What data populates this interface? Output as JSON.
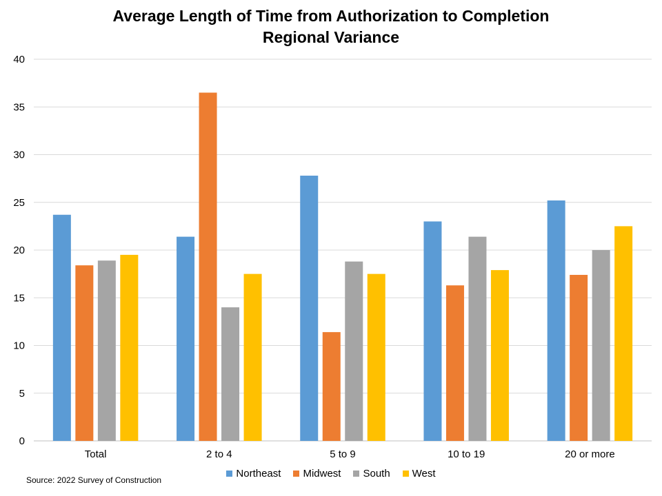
{
  "chart_data": {
    "type": "bar",
    "title": "Average Length of Time from Authorization to Completion",
    "subtitle": "Regional Variance",
    "categories": [
      "Total",
      "2 to 4",
      "5 to 9",
      "10 to 19",
      "20 or more"
    ],
    "series": [
      {
        "name": "Northeast",
        "color": "#5B9BD5",
        "values": [
          23.7,
          21.4,
          27.8,
          23.0,
          25.2
        ]
      },
      {
        "name": "Midwest",
        "color": "#ED7D31",
        "values": [
          18.4,
          36.5,
          11.4,
          16.3,
          17.4
        ]
      },
      {
        "name": "South",
        "color": "#A5A5A5",
        "values": [
          18.9,
          14.0,
          18.8,
          21.4,
          20.0
        ]
      },
      {
        "name": "West",
        "color": "#FFC000",
        "values": [
          19.5,
          17.5,
          17.5,
          17.9,
          22.5
        ]
      }
    ],
    "ylim": [
      0,
      40
    ],
    "yticks": [
      0,
      5,
      10,
      15,
      20,
      25,
      30,
      35,
      40
    ],
    "grid": true,
    "legend_position": "bottom"
  },
  "source": "Source: 2022 Survey  of Construction"
}
